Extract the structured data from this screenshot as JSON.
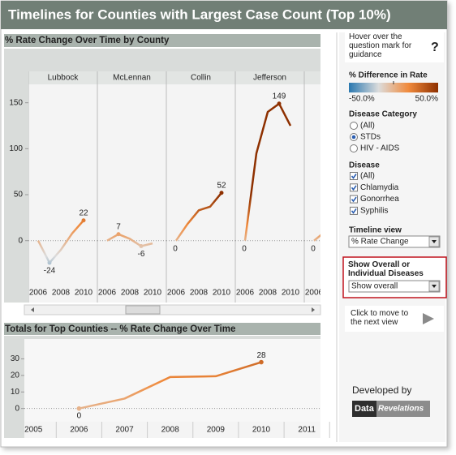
{
  "title": "Timelines for Counties with Largest Case Count (Top 10%)",
  "chart_data": [
    {
      "type": "line",
      "title": "% Rate Change Over Time by County",
      "categories": [
        "2006",
        "2007",
        "2008",
        "2009",
        "2010"
      ],
      "xticks": [
        "2006",
        "2008",
        "2010"
      ],
      "ylim": [
        -47,
        170
      ],
      "yticks": [
        0,
        50,
        100,
        150
      ],
      "series": [
        {
          "name": "Lubbock",
          "values": [
            0,
            -24,
            -10,
            8,
            22
          ],
          "value_labels": [
            null,
            "-24",
            null,
            null,
            "22"
          ]
        },
        {
          "name": "McLennan",
          "values": [
            0,
            7,
            2,
            -6,
            -3
          ],
          "value_labels": [
            null,
            "7",
            null,
            "-6",
            null
          ]
        },
        {
          "name": "Collin",
          "values": [
            0,
            18,
            33,
            37,
            52
          ],
          "value_labels": [
            "0",
            null,
            null,
            null,
            "52"
          ]
        },
        {
          "name": "Jefferson",
          "values": [
            0,
            95,
            140,
            149,
            125
          ],
          "value_labels": [
            "0",
            null,
            null,
            "149",
            null
          ]
        },
        {
          "name": null,
          "values": [
            0,
            10,
            null,
            null,
            null
          ],
          "value_labels": [
            "0",
            null,
            null,
            null,
            null
          ]
        }
      ]
    },
    {
      "type": "line",
      "title": "Totals for Top Counties -- % Rate Change Over Time",
      "x": [
        2006,
        2007,
        2008,
        2009,
        2010
      ],
      "values": [
        0,
        6,
        19,
        19.5,
        28
      ],
      "value_labels": [
        "0",
        null,
        null,
        null,
        "28"
      ],
      "xlim": [
        2004.8,
        2011.3
      ],
      "xticks": [
        2005,
        2006,
        2007,
        2008,
        2009,
        2010,
        2011
      ],
      "ylim": [
        -8,
        42
      ],
      "yticks": [
        0,
        10,
        20,
        30
      ]
    }
  ],
  "legend": {
    "title": "% Difference in Rate",
    "min": -50,
    "max": 50,
    "min_label": "-50.0%",
    "max_label": "50.0%",
    "colors": [
      "#2a78b0",
      "#dcdcdc",
      "#f08a3c",
      "#8e3000"
    ]
  },
  "help": {
    "text": "Hover over the question mark for guidance",
    "icon": "?"
  },
  "disease_category": {
    "title": "Disease Category",
    "options": [
      "(All)",
      "STDs",
      "HIV - AIDS"
    ],
    "selected": 1
  },
  "disease": {
    "title": "Disease",
    "options": [
      "(All)",
      "Chlamydia",
      "Gonorrhea",
      "Syphilis"
    ],
    "checked": [
      true,
      true,
      true,
      true
    ]
  },
  "timeline_view": {
    "title": "Timeline view",
    "value": "% Rate Change"
  },
  "show_overall": {
    "title": "Show Overall or Individual Diseases",
    "value": "Show overall"
  },
  "next": {
    "text": "Click to move to the next view"
  },
  "credit": {
    "text": "Developed by",
    "logo": [
      "Data",
      "Revelations"
    ]
  }
}
